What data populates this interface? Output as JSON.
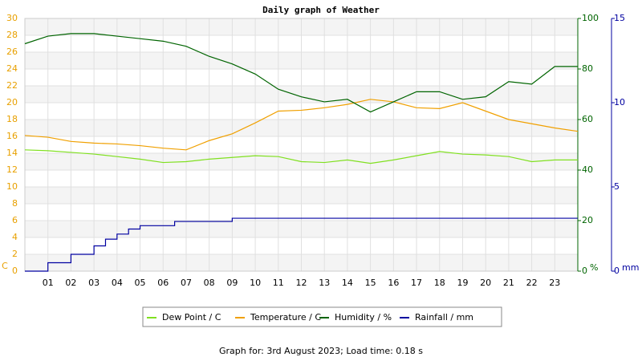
{
  "chart_data": {
    "type": "line",
    "title": "Daily graph of Weather",
    "x": [
      0,
      1,
      2,
      3,
      4,
      5,
      6,
      7,
      8,
      9,
      10,
      11,
      12,
      13,
      14,
      15,
      16,
      17,
      18,
      19,
      20,
      21,
      22,
      23,
      24
    ],
    "xlim": [
      0,
      24
    ],
    "xticks": [
      {
        "value": 1,
        "label": "01"
      },
      {
        "value": 2,
        "label": "02"
      },
      {
        "value": 3,
        "label": "03"
      },
      {
        "value": 4,
        "label": "04"
      },
      {
        "value": 5,
        "label": "05"
      },
      {
        "value": 6,
        "label": "06"
      },
      {
        "value": 7,
        "label": "07"
      },
      {
        "value": 8,
        "label": "08"
      },
      {
        "value": 9,
        "label": "09"
      },
      {
        "value": 10,
        "label": "10"
      },
      {
        "value": 11,
        "label": "11"
      },
      {
        "value": 12,
        "label": "12"
      },
      {
        "value": 13,
        "label": "13"
      },
      {
        "value": 14,
        "label": "14"
      },
      {
        "value": 15,
        "label": "15"
      },
      {
        "value": 16,
        "label": "16"
      },
      {
        "value": 17,
        "label": "17"
      },
      {
        "value": 18,
        "label": "18"
      },
      {
        "value": 19,
        "label": "19"
      },
      {
        "value": 20,
        "label": "20"
      },
      {
        "value": 21,
        "label": "21"
      },
      {
        "value": 22,
        "label": "22"
      },
      {
        "value": 23,
        "label": "23"
      }
    ],
    "ylim": [
      0,
      30
    ],
    "yticks": [
      0,
      2,
      4,
      6,
      8,
      10,
      12,
      14,
      16,
      18,
      20,
      22,
      24,
      26,
      28,
      30
    ],
    "ylabel": "C",
    "ycolor": "#e8a000",
    "y2lim": [
      0,
      100
    ],
    "y2ticks": [
      0,
      20,
      40,
      60,
      80,
      100
    ],
    "y2label": "%",
    "y2color": "#006400",
    "y3lim": [
      0,
      15
    ],
    "y3ticks": [
      0,
      5,
      10,
      15
    ],
    "y3label": "mm",
    "y3color": "#0000a0",
    "grid": true,
    "series": [
      {
        "name": "Dew Point / C",
        "color": "#80e020",
        "values": [
          14.4,
          14.3,
          14.1,
          13.9,
          13.6,
          13.3,
          12.9,
          13.0,
          13.3,
          13.5,
          13.7,
          13.6,
          13.0,
          12.9,
          13.2,
          12.8,
          13.2,
          13.7,
          14.2,
          13.9,
          13.8,
          13.6,
          13.0,
          13.2,
          13.2
        ]
      },
      {
        "name": "Temperature / C",
        "color": "#f0a000",
        "values": [
          16.1,
          15.9,
          15.4,
          15.2,
          15.1,
          14.9,
          14.6,
          14.4,
          15.5,
          16.3,
          17.6,
          19.0,
          19.1,
          19.4,
          19.8,
          20.4,
          20.1,
          19.4,
          19.3,
          20.0,
          19.0,
          18.0,
          17.5,
          17.0,
          16.6
        ]
      },
      {
        "name": "Humidity / %",
        "color": "#006400",
        "axis": "y2",
        "values": [
          90,
          93,
          94,
          94,
          93,
          92,
          91,
          89,
          85,
          82,
          78,
          72,
          69,
          67,
          68,
          63,
          67,
          71,
          71,
          68,
          69,
          75,
          74,
          81,
          81
        ]
      },
      {
        "name": "Rainfall / mm",
        "color": "#0000a0",
        "axis": "y3",
        "step": true,
        "x": [
          0,
          1,
          2,
          3,
          3.5,
          4,
          4.5,
          5,
          6.5,
          9,
          24
        ],
        "values": [
          0,
          0.5,
          1.0,
          1.5,
          1.9,
          2.2,
          2.5,
          2.7,
          2.95,
          3.14,
          3.14
        ]
      }
    ],
    "footer": "Graph for: 3rd August 2023; Load time: 0.18 s"
  }
}
